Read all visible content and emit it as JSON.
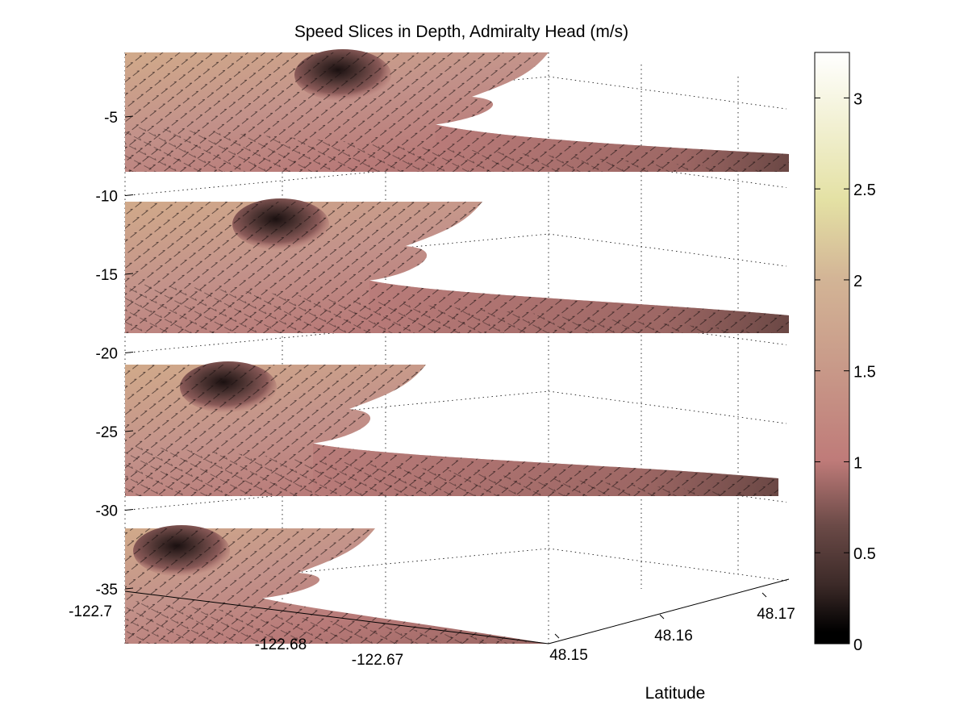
{
  "chart_data": {
    "type": "heatmap",
    "title": "Speed Slices in Depth, Admiralty Head (m/s)",
    "xlabel": "",
    "ylabel": "Latitude",
    "zlabel": "",
    "x_ticks": [
      -122.7,
      -122.68,
      -122.67
    ],
    "x_tick_labels": [
      "-122.7",
      "-122.68",
      "-122.67"
    ],
    "y_ticks": [
      48.15,
      48.16,
      48.17
    ],
    "y_tick_labels": [
      "48.15",
      "48.16",
      "48.17"
    ],
    "z_ticks": [
      -5,
      -10,
      -15,
      -20,
      -25,
      -30,
      -35
    ],
    "z_tick_labels": [
      "-5",
      "-10",
      "-15",
      "-20",
      "-25",
      "-30",
      "-35"
    ],
    "zlim": [
      -38,
      -1.5
    ],
    "grid": true,
    "colorbar": {
      "ticks": [
        0,
        0.5,
        1,
        1.5,
        2,
        2.5,
        3
      ],
      "tick_labels": [
        "0",
        "0.5",
        "1",
        "1.5",
        "2",
        "2.5",
        "3"
      ],
      "range": [
        0,
        3.25
      ],
      "stops": [
        "#000000",
        "#3c2a28",
        "#6b4a47",
        "#9a6562",
        "#bf7b79",
        "#c89888",
        "#d3b596",
        "#e4e1a4",
        "#ffffff"
      ]
    },
    "slices": [
      {
        "depth": -1.5,
        "max_speed": 1.8,
        "eddy_min_speed": 0.1
      },
      {
        "depth": -11,
        "max_speed": 1.7,
        "eddy_min_speed": 0.1
      },
      {
        "depth": -21,
        "max_speed": 1.65,
        "eddy_min_speed": 0.1
      },
      {
        "depth": -31,
        "max_speed": 1.6,
        "eddy_min_speed": 0.1
      }
    ]
  }
}
